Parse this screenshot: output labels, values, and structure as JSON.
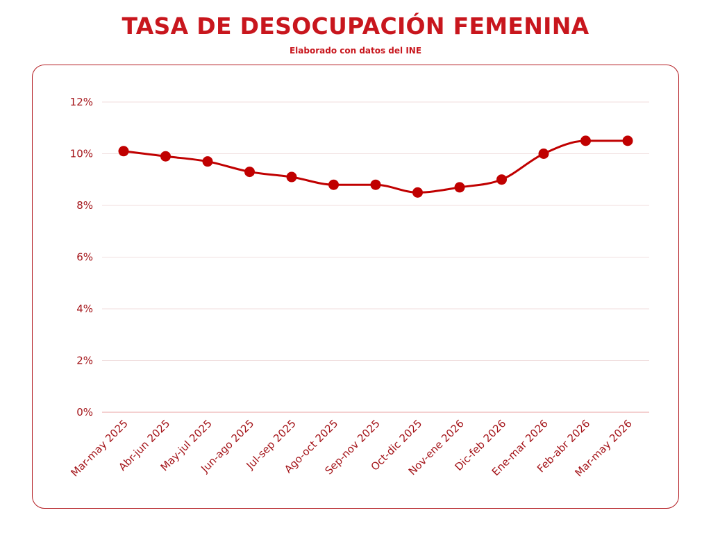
{
  "header": {
    "title": "TASA DE DESOCUPACIÓN FEMENINA",
    "subtitle": "Elaborado con datos del INE"
  },
  "colors": {
    "accent": "#c8161d",
    "line": "#c00000",
    "grid": "#f0dede",
    "baseline": "#e8a0a0",
    "frame": "#b31b20",
    "tick_text": "#a41419"
  },
  "chart_data": {
    "type": "line",
    "title": "TASA DE DESOCUPACIÓN FEMENINA",
    "subtitle": "Elaborado con datos del INE",
    "xlabel": "",
    "ylabel": "",
    "categories": [
      "Mar-may 2025",
      "Abr-jun 2025",
      "May-jul 2025",
      "Jun-ago 2025",
      "Jul-sep 2025",
      "Ago-oct 2025",
      "Sep-nov 2025",
      "Oct-dic 2025",
      "Nov-ene 2026",
      "Dic-feb 2026",
      "Ene-mar 2026",
      "Feb-abr 2026",
      "Mar-may 2026"
    ],
    "values": [
      10.1,
      9.9,
      9.7,
      9.3,
      9.1,
      8.8,
      8.8,
      8.5,
      8.7,
      9.0,
      10.0,
      10.5,
      10.5
    ],
    "y_unit": "%",
    "ylim": [
      0,
      12
    ],
    "yticks": [
      0,
      2,
      4,
      6,
      8,
      10,
      12
    ],
    "ytick_labels": [
      "0%",
      "2%",
      "4%",
      "6%",
      "8%",
      "10%",
      "12%"
    ],
    "grid": "horizontal",
    "legend": "none",
    "smooth": true,
    "markers": true
  }
}
